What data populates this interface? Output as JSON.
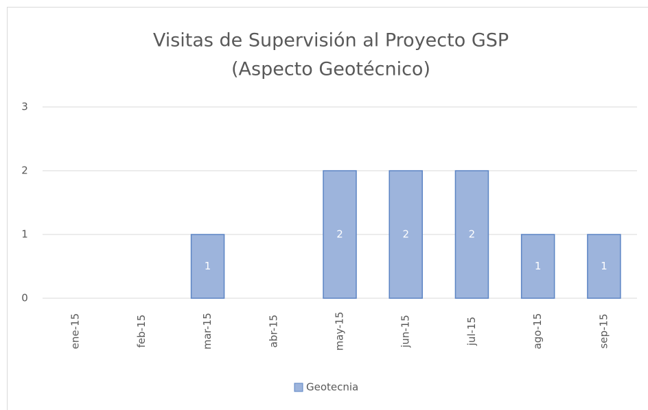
{
  "chart_data": {
    "type": "bar",
    "title": [
      "Visitas de Supervisión al Proyecto GSP",
      "(Aspecto Geotécnico)"
    ],
    "categories": [
      "ene-15",
      "feb-15",
      "mar-15",
      "abr-15",
      "may-15",
      "jun-15",
      "jul-15",
      "ago-15",
      "sep-15"
    ],
    "series": [
      {
        "name": "Geotecnia",
        "color": "#9db4dc",
        "values": [
          null,
          null,
          1,
          null,
          2,
          2,
          2,
          1,
          1
        ]
      }
    ],
    "ylim": [
      0,
      3
    ],
    "yticks": [
      0,
      1,
      2,
      3
    ],
    "grid": true,
    "legend": "bottom",
    "data_labels": true
  }
}
